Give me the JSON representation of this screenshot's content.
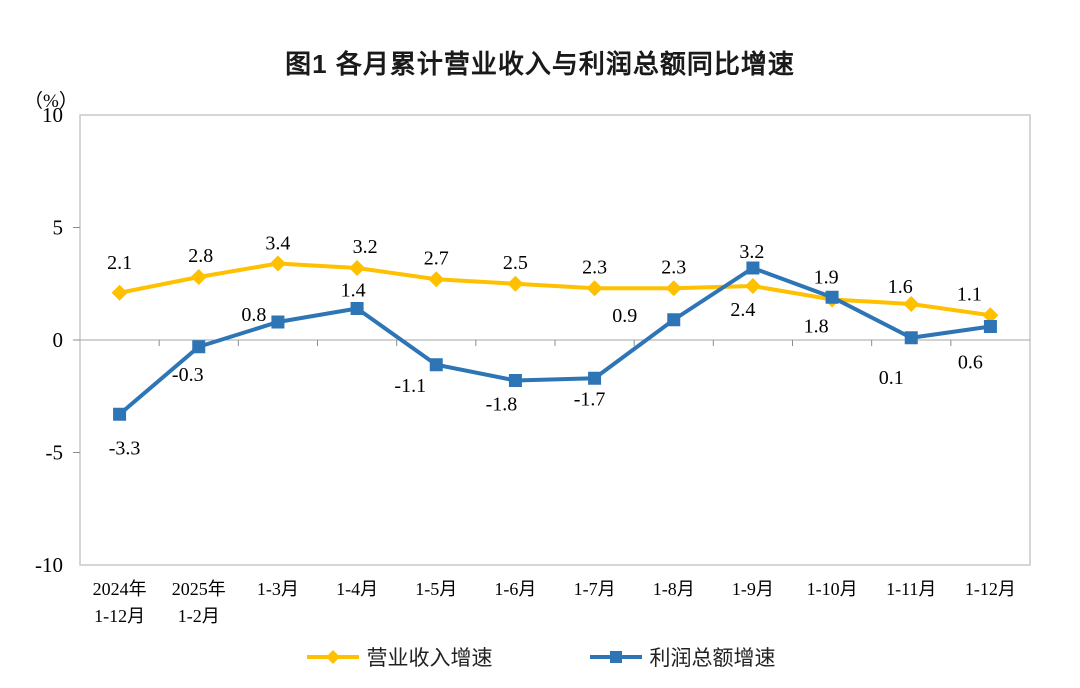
{
  "title": "图1  各月累计营业收入与利润总额同比增速",
  "y_axis_unit": "（%）",
  "colors": {
    "revenue_line": "#FFC000",
    "profit_line": "#2E75B6",
    "plot_border": "#C9C9C9",
    "zero_axis": "#A6A6A6",
    "tick": "#8C8C8C",
    "label_text": "#000000"
  },
  "chart_data": {
    "type": "line",
    "title": "图1  各月累计营业收入与利润总额同比增速",
    "ylabel": "（%）",
    "xlabel": "",
    "ylim": [
      -10,
      10
    ],
    "yticks": [
      10,
      5,
      0,
      -5,
      -10
    ],
    "grid": false,
    "legend_position": "bottom",
    "categories": [
      "2024年\n1-12月",
      "2025年\n1-2月",
      "1-3月",
      "1-4月",
      "1-5月",
      "1-6月",
      "1-7月",
      "1-8月",
      "1-9月",
      "1-10月",
      "1-11月",
      "1-12月"
    ],
    "series": [
      {
        "name": "营业收入增速",
        "marker": "diamond",
        "color": "#FFC000",
        "values": [
          2.1,
          2.8,
          3.4,
          3.2,
          2.7,
          2.5,
          2.3,
          2.3,
          2.4,
          1.8,
          1.6,
          1.1
        ]
      },
      {
        "name": "利润总额增速",
        "marker": "square",
        "color": "#2E75B6",
        "values": [
          -3.3,
          -0.3,
          0.8,
          1.4,
          -1.1,
          -1.8,
          -1.7,
          0.9,
          3.2,
          1.9,
          0.1,
          0.6
        ]
      }
    ],
    "label_offsets": [
      [
        [
          0,
          -30
        ],
        [
          2,
          -21
        ],
        [
          0,
          -20
        ],
        [
          8,
          -21
        ],
        [
          0,
          -21
        ],
        [
          0,
          -21
        ],
        [
          0,
          -21
        ],
        [
          0,
          -21
        ],
        [
          -10,
          24
        ],
        [
          -16,
          27
        ],
        [
          -11,
          -17
        ],
        [
          -21,
          -21
        ]
      ],
      [
        [
          5,
          34
        ],
        [
          -11,
          28
        ],
        [
          -24,
          -7
        ],
        [
          -4,
          -18
        ],
        [
          -26,
          21
        ],
        [
          -14,
          24
        ],
        [
          -5,
          21
        ],
        [
          -49,
          -4
        ],
        [
          -1,
          -16
        ],
        [
          -6,
          -20
        ],
        [
          -20,
          40
        ],
        [
          -20,
          36
        ]
      ]
    ]
  },
  "legend": {
    "items": [
      {
        "label": "营业收入增速"
      },
      {
        "label": "利润总额增速"
      }
    ]
  }
}
